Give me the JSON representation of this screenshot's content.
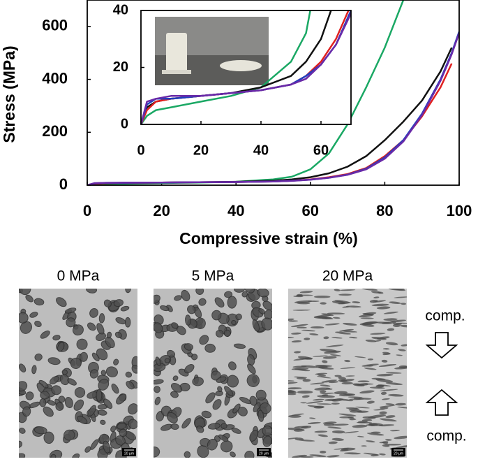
{
  "chart_data": {
    "type": "line",
    "x_label": "Compressive strain (%)",
    "y_label": "Stress (MPa)",
    "x": [
      0,
      2,
      5,
      10,
      20,
      30,
      40,
      50,
      55,
      60,
      65,
      70,
      75,
      80,
      85,
      90,
      95,
      98,
      100
    ],
    "series": [
      {
        "color": "#1aa864",
        "values": [
          0,
          3,
          5,
          6,
          8,
          10,
          13,
          22,
          32,
          60,
          120,
          230,
          370,
          520,
          700,
          null,
          null,
          null,
          null
        ]
      },
      {
        "color": "#111111",
        "values": [
          0,
          6,
          8,
          9,
          10,
          11,
          13,
          17,
          22,
          30,
          45,
          70,
          110,
          170,
          240,
          320,
          430,
          520,
          null
        ]
      },
      {
        "color": "#e02020",
        "values": [
          0,
          5,
          8,
          9,
          10,
          11,
          12,
          14,
          17,
          22,
          30,
          42,
          65,
          110,
          170,
          260,
          370,
          460,
          null
        ]
      },
      {
        "color": "#1f3fbf",
        "values": [
          0,
          7,
          9,
          9,
          10,
          11,
          12,
          14,
          17,
          21,
          28,
          40,
          62,
          105,
          170,
          270,
          400,
          500,
          580
        ]
      },
      {
        "color": "#6a2aa8",
        "values": [
          0,
          8,
          9,
          10,
          10,
          11,
          12,
          14,
          16,
          21,
          28,
          39,
          60,
          100,
          165,
          265,
          395,
          495,
          575
        ]
      }
    ],
    "xlim": [
      0,
      100
    ],
    "xticks": [
      0,
      20,
      40,
      60,
      80,
      100
    ],
    "ylim": [
      0,
      700
    ],
    "yticks": [
      0,
      200,
      400,
      600
    ],
    "inset": {
      "xlim": [
        0,
        70
      ],
      "xticks": [
        0,
        20,
        40,
        60
      ],
      "ylim": [
        0,
        40
      ],
      "yticks": [
        0,
        20,
        40
      ]
    }
  },
  "micrographs": [
    {
      "label": "0 MPa",
      "scale_bar": "20 μm"
    },
    {
      "label": "5 MPa",
      "scale_bar": "20 μm"
    },
    {
      "label": "20 MPa",
      "scale_bar": "20 μm"
    }
  ],
  "arrows": {
    "top": "comp.",
    "bottom": "comp."
  }
}
